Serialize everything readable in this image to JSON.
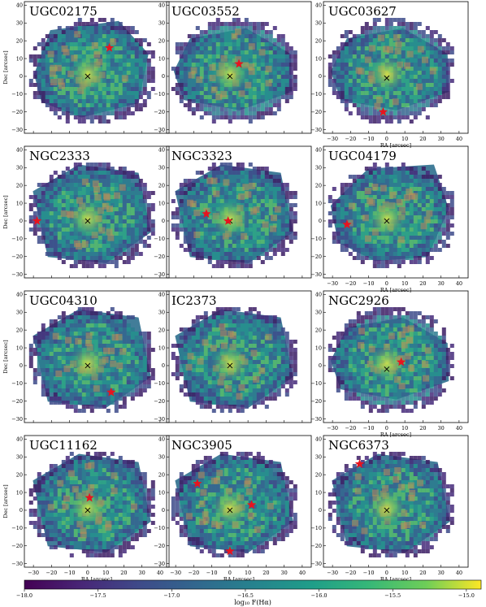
{
  "figure": {
    "xlabel": "RA [arcsec]",
    "ylabel": "Dec [arcsec]",
    "colorbar_label": "log₁₀ F(Hα)"
  },
  "chart_data": {
    "type": "heatmap",
    "xlim": [
      -35,
      45
    ],
    "ylim": [
      -32,
      42
    ],
    "xticks": [
      -30,
      -20,
      -10,
      0,
      10,
      20,
      30,
      40
    ],
    "yticks": [
      -30,
      -20,
      -10,
      0,
      10,
      20,
      30,
      40
    ],
    "colorbar": {
      "range": [
        -18.0,
        -14.9
      ],
      "ticks": [
        -18.0,
        -17.5,
        -17.0,
        -16.5,
        -16.0,
        -15.5,
        -15.0
      ],
      "tick_labels": [
        "−18.0",
        "−17.5",
        "−17.0",
        "−16.5",
        "−16.0",
        "−15.5",
        "−15.0"
      ],
      "colormap": "viridis"
    },
    "panels": [
      {
        "name": "UGC02175",
        "shape": "round",
        "center_marker": [
          0,
          0
        ],
        "stars": [
          [
            12,
            16
          ]
        ],
        "xlabels": false,
        "ylabels": true
      },
      {
        "name": "UGC03552",
        "shape": "ellipse",
        "center_marker": [
          0,
          0
        ],
        "stars": [
          [
            5,
            7
          ]
        ],
        "xlabels": false,
        "ylabels": false
      },
      {
        "name": "UGC03627",
        "shape": "ellipse",
        "center_marker": [
          0,
          -1
        ],
        "stars": [
          [
            -2,
            -20
          ]
        ],
        "xlabels": true,
        "ylabels": false
      },
      {
        "name": "NGC2333",
        "shape": "hex",
        "center_marker": [
          0,
          0
        ],
        "stars": [
          [
            -28,
            0
          ]
        ],
        "xlabels": false,
        "ylabels": true
      },
      {
        "name": "NGC3323",
        "shape": "hex",
        "center_marker": [
          0,
          0
        ],
        "stars": [
          [
            -13,
            4
          ],
          [
            -1,
            0
          ]
        ],
        "xlabels": false,
        "ylabels": false
      },
      {
        "name": "UGC04179",
        "shape": "irregular",
        "center_marker": [
          0,
          0
        ],
        "stars": [
          [
            -22,
            -2
          ]
        ],
        "xlabels": true,
        "ylabels": false
      },
      {
        "name": "UGC04310",
        "shape": "hex",
        "center_marker": [
          0,
          0
        ],
        "stars": [
          [
            13,
            -15
          ]
        ],
        "xlabels": false,
        "ylabels": true
      },
      {
        "name": "IC2373",
        "shape": "hex",
        "center_marker": [
          0,
          0
        ],
        "stars": [],
        "xlabels": false,
        "ylabels": false
      },
      {
        "name": "NGC2926",
        "shape": "ellipse",
        "center_marker": [
          0,
          -2
        ],
        "stars": [
          [
            8,
            2
          ]
        ],
        "xlabels": true,
        "ylabels": false
      },
      {
        "name": "UGC11162",
        "shape": "hex",
        "center_marker": [
          0,
          0
        ],
        "stars": [
          [
            1,
            7
          ]
        ],
        "xlabels": true,
        "ylabels": true
      },
      {
        "name": "NGC3905",
        "shape": "hex",
        "center_marker": [
          0,
          0
        ],
        "stars": [
          [
            -18,
            15
          ],
          [
            12,
            3
          ],
          [
            0,
            -23
          ]
        ],
        "xlabels": true,
        "ylabels": false
      },
      {
        "name": "NGC6373",
        "shape": "hex",
        "center_marker": [
          0,
          0
        ],
        "stars": [
          [
            -15,
            26
          ]
        ],
        "xlabels": true,
        "ylabels": false
      }
    ]
  }
}
